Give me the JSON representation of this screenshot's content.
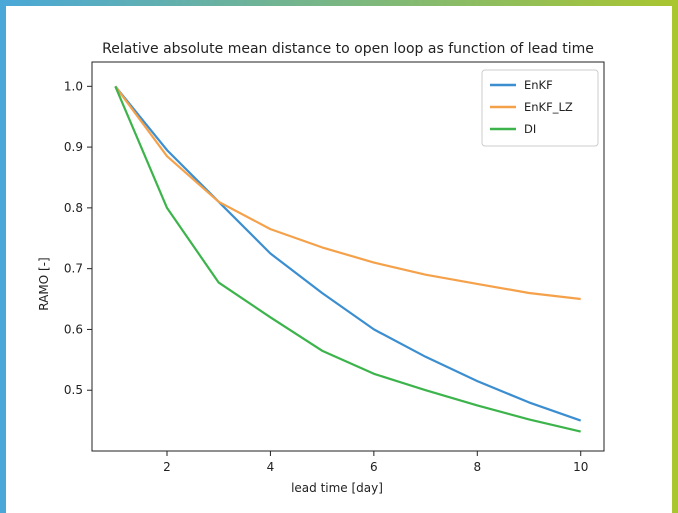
{
  "chart_data": {
    "type": "line",
    "title": "Relative absolute mean distance to open loop as function of lead time",
    "xlabel": "lead time [day]",
    "ylabel": "RAMO [-]",
    "xlim": [
      0.55,
      10.45
    ],
    "ylim": [
      0.4,
      1.04
    ],
    "xticks": [
      2,
      4,
      6,
      8,
      10
    ],
    "yticks": [
      0.5,
      0.6,
      0.7,
      0.8,
      0.9,
      1.0
    ],
    "ytick_labels": [
      "0.5",
      "0.6",
      "0.7",
      "0.8",
      "0.9",
      "1.0"
    ],
    "legend_position": "top-right",
    "grid": false,
    "x": [
      1,
      2,
      3,
      4,
      5,
      6,
      7,
      8,
      9,
      10
    ],
    "series": [
      {
        "name": "EnKF",
        "color": "#3b8ed0",
        "values": [
          1.0,
          0.895,
          0.81,
          0.725,
          0.66,
          0.6,
          0.555,
          0.515,
          0.48,
          0.45
        ]
      },
      {
        "name": "EnKF_LZ",
        "color": "#f5a14a",
        "values": [
          1.0,
          0.885,
          0.81,
          0.765,
          0.735,
          0.71,
          0.69,
          0.675,
          0.66,
          0.65
        ]
      },
      {
        "name": "DI",
        "color": "#3cb44b",
        "values": [
          1.0,
          0.8,
          0.677,
          0.62,
          0.565,
          0.527,
          0.5,
          0.475,
          0.452,
          0.432
        ]
      }
    ]
  }
}
